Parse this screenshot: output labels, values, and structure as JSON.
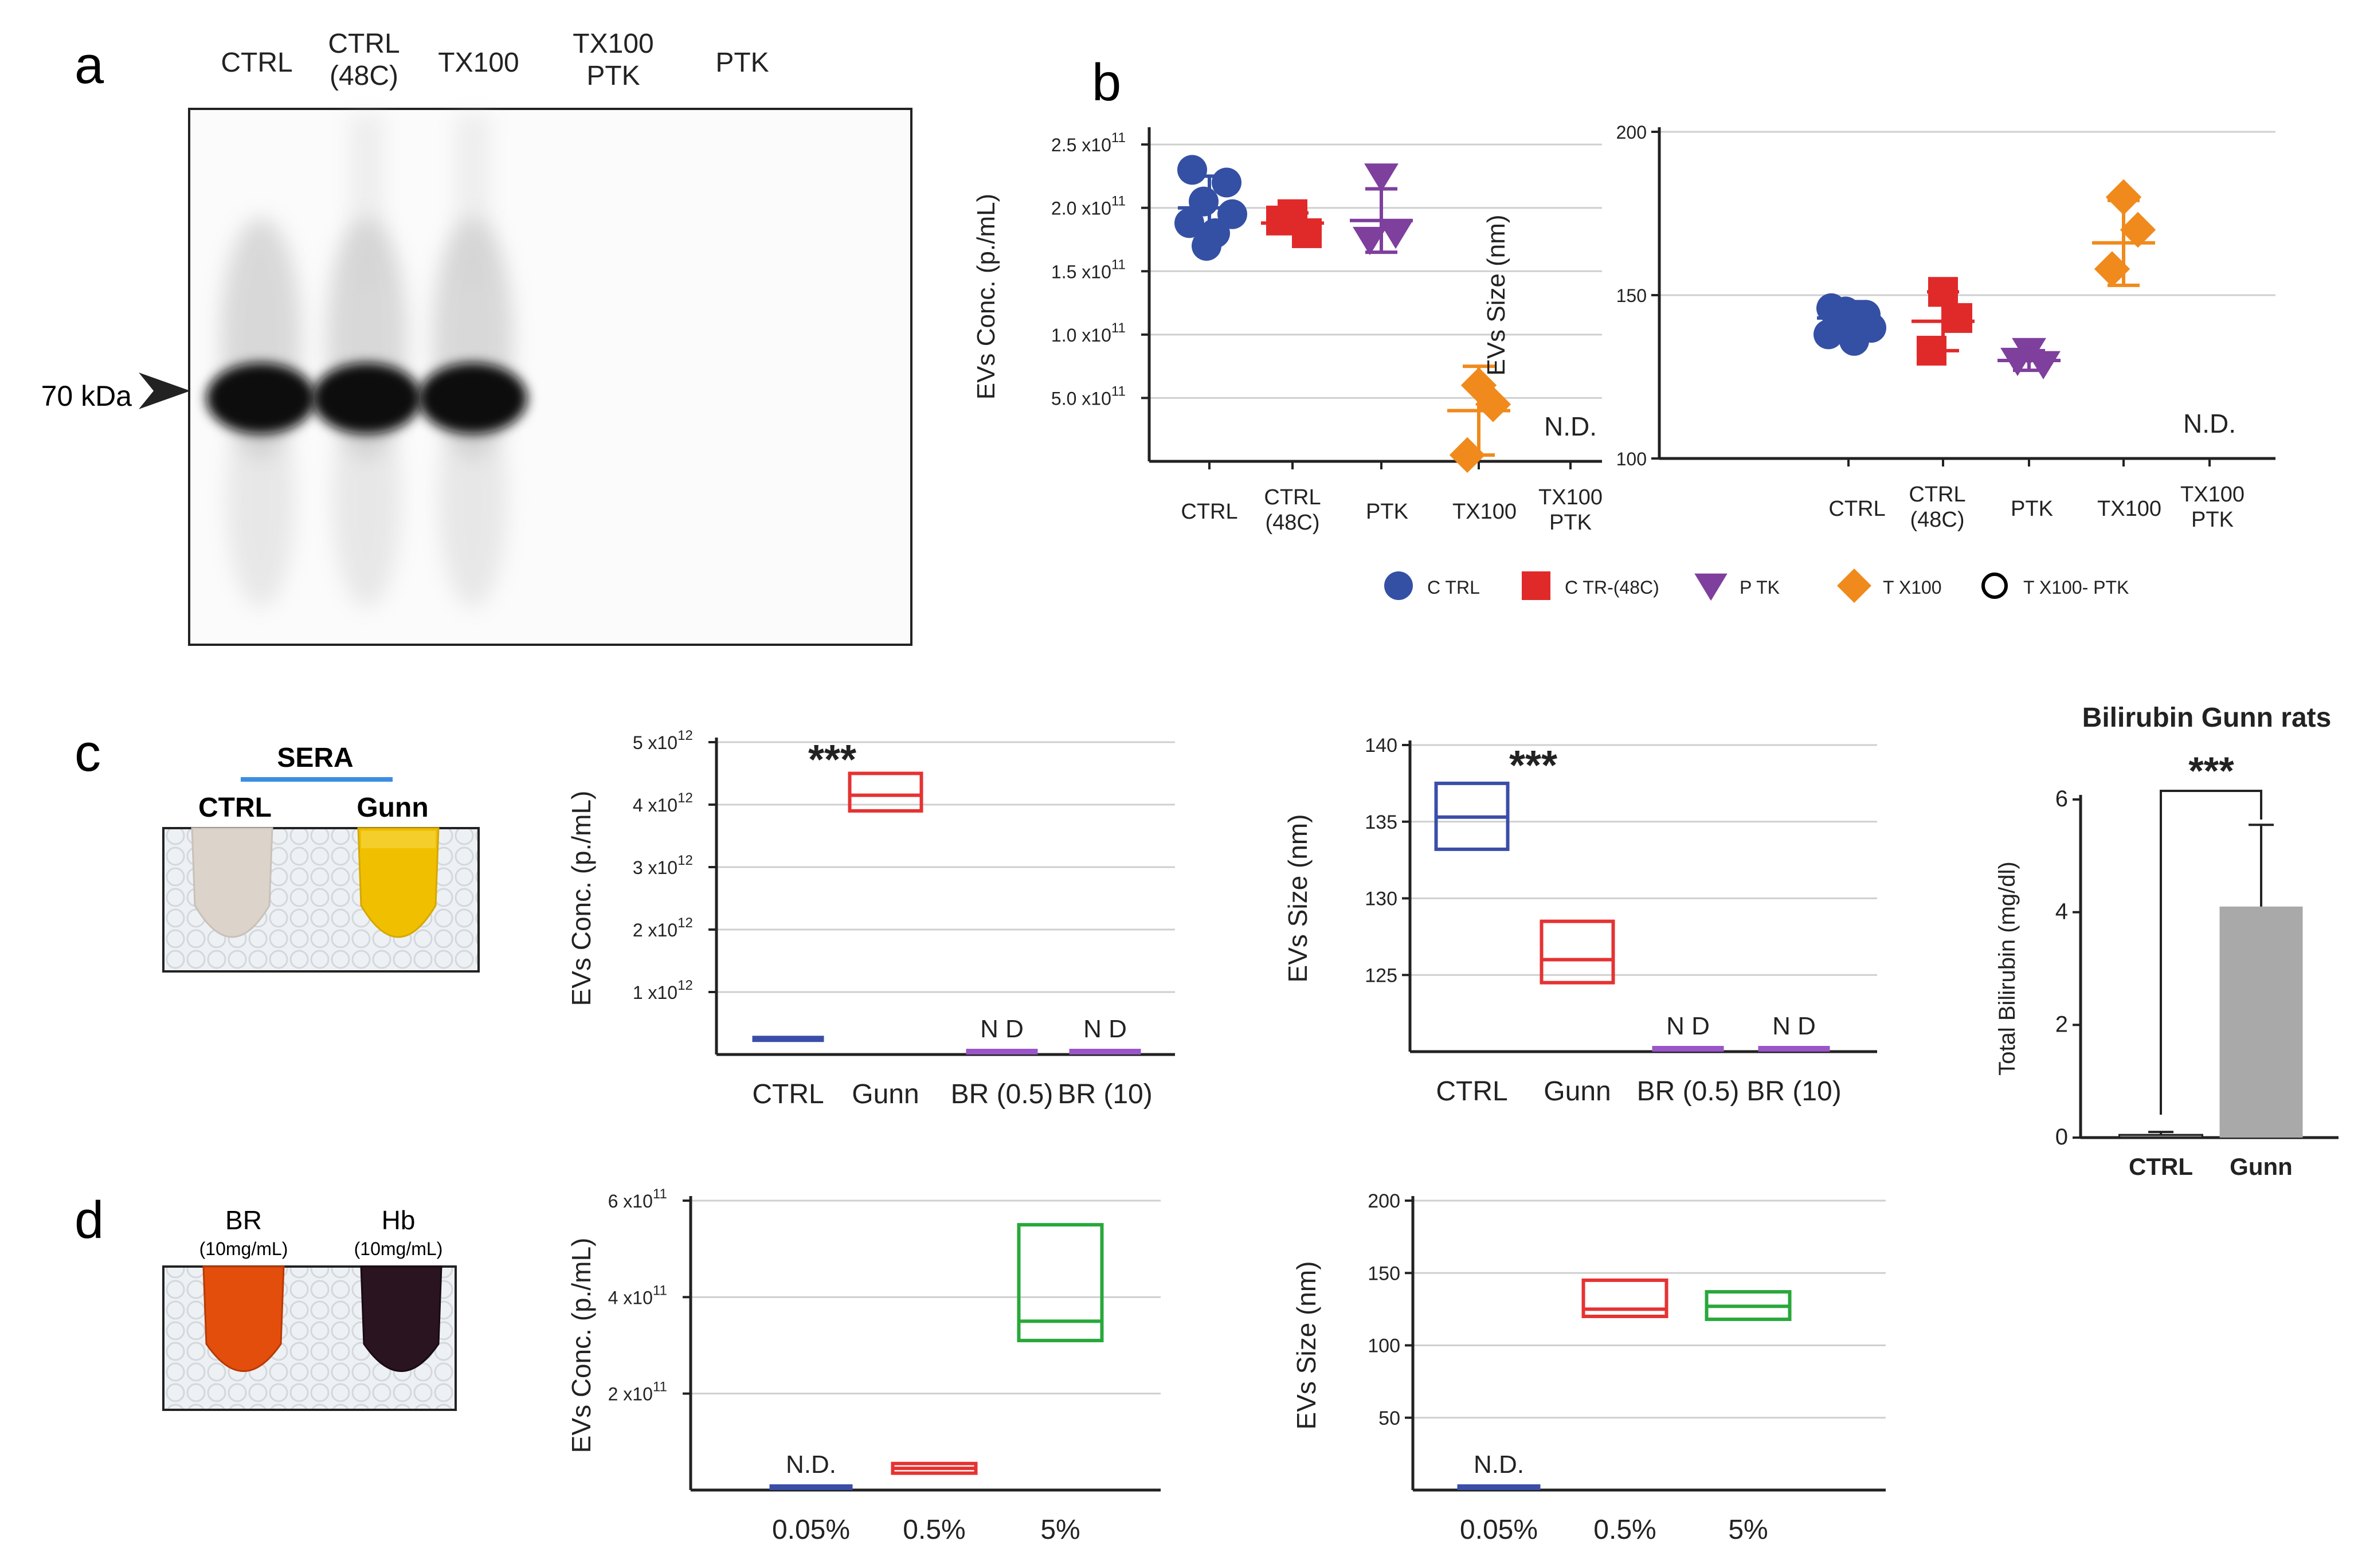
{
  "panel_letters": {
    "a": "a",
    "b": "b",
    "c": "c",
    "d": "d"
  },
  "panel_a": {
    "lanes": [
      "CTRL",
      "CTRL\n(48C)",
      "TX100",
      "TX100\nPTK",
      "PTK"
    ],
    "marker_label": "70 kDa",
    "band_lanes": [
      0,
      1,
      2
    ]
  },
  "panel_b": {
    "categories": [
      "CTRL",
      "CTRL\n(48C)",
      "PTK",
      "TX100",
      "TX100\nPTK"
    ],
    "legend": [
      {
        "label": "C TRL",
        "shape": "circle",
        "color": "#3450a4"
      },
      {
        "label": "C TR-(48C)",
        "shape": "square",
        "color": "#e02a2a"
      },
      {
        "label": "P TK",
        "shape": "triangle-down",
        "color": "#7e3f9d"
      },
      {
        "label": "T X100",
        "shape": "diamond",
        "color": "#f08a1c"
      },
      {
        "label": "T X100- PTK",
        "shape": "circle-open",
        "color": "#000000"
      }
    ]
  },
  "panel_c": {
    "sera_label": "SERA",
    "tube_labels": [
      "CTRL",
      "Gunn"
    ],
    "tube_colors": [
      "#d9cfc6",
      "#f2c200"
    ]
  },
  "panel_d": {
    "tube_labels": [
      "BR",
      "Hb"
    ],
    "tube_sublabels": [
      "(10mg/mL)",
      "(10mg/mL)"
    ],
    "tube_colors": [
      "#e44e0c",
      "#2a1420"
    ]
  },
  "chart_data": [
    {
      "id": "b-conc",
      "type": "scatter",
      "ylabel": "EVs Conc. (p./mL)",
      "yticks": [
        {
          "v": 0.5,
          "label": "5.0 x10",
          "exp": "11"
        },
        {
          "v": 1.0,
          "label": "1.0 x10",
          "exp": "11"
        },
        {
          "v": 1.5,
          "label": "1.5 x10",
          "exp": "11"
        },
        {
          "v": 2.0,
          "label": "2.0 x10",
          "exp": "11"
        },
        {
          "v": 2.5,
          "label": "2.5 x10",
          "exp": "11"
        }
      ],
      "ylim": [
        0,
        2.6
      ],
      "categories": [
        "CTRL",
        "CTRL\n(48C)",
        "PTK",
        "TX100",
        "TX100\nPTK"
      ],
      "groups": [
        {
          "name": "CTRL",
          "shape": "circle",
          "color": "#3450a4",
          "points": [
            2.3,
            2.2,
            2.05,
            1.95,
            1.88,
            1.8,
            1.7
          ],
          "mean": 2.0,
          "sd": 0.25
        },
        {
          "name": "CTR-(48C)",
          "shape": "square",
          "color": "#e02a2a",
          "points": [
            1.95,
            1.8,
            1.9
          ],
          "mean": 1.88,
          "sd": 0.08
        },
        {
          "name": "PTK",
          "shape": "triangle-down",
          "color": "#7e3f9d",
          "points": [
            2.25,
            1.8,
            1.75
          ],
          "mean": 1.9,
          "sd": 0.25
        },
        {
          "name": "TX100",
          "shape": "diamond",
          "color": "#f08a1c",
          "points": [
            0.6,
            0.45,
            0.05
          ],
          "mean": 0.4,
          "sd": 0.35
        }
      ],
      "annotation": "N.D."
    },
    {
      "id": "b-size",
      "type": "scatter",
      "ylabel": "EVs Size   (nm)",
      "yticks": [
        {
          "v": 100,
          "label": "100"
        },
        {
          "v": 150,
          "label": "150"
        },
        {
          "v": 200,
          "label": "200"
        }
      ],
      "ylim": [
        100,
        200
      ],
      "categories": [
        "CTRL",
        "CTRL\n(48C)",
        "PTK",
        "TX100",
        "TX100\nPTK"
      ],
      "groups": [
        {
          "name": "CTRL",
          "shape": "circle",
          "color": "#3450a4",
          "points": [
            146,
            144,
            142,
            140,
            138,
            136,
            145
          ],
          "mean": 143,
          "sd": 5
        },
        {
          "name": "CTR-(48C)",
          "shape": "square",
          "color": "#e02a2a",
          "points": [
            151,
            143,
            133
          ],
          "mean": 142,
          "sd": 9
        },
        {
          "name": "PTK",
          "shape": "triangle-down",
          "color": "#7e3f9d",
          "points": [
            133,
            129,
            130
          ],
          "mean": 130,
          "sd": 3
        },
        {
          "name": "TX100",
          "shape": "diamond",
          "color": "#f08a1c",
          "points": [
            180,
            170,
            158
          ],
          "mean": 166,
          "sd": 13
        }
      ],
      "annotation": "N.D."
    },
    {
      "id": "c-conc",
      "type": "box",
      "ylabel": "EVs Conc. (p./mL)",
      "yticks": [
        {
          "v": 1,
          "label": "1 x10",
          "exp": "12"
        },
        {
          "v": 2,
          "label": "2 x10",
          "exp": "12"
        },
        {
          "v": 3,
          "label": "3 x10",
          "exp": "12"
        },
        {
          "v": 4,
          "label": "4 x10",
          "exp": "12"
        },
        {
          "v": 5,
          "label": "5 x10",
          "exp": "12"
        }
      ],
      "ylim": [
        0,
        5
      ],
      "categories": [
        "CTRL",
        "Gunn",
        "BR (0.5)",
        "BR (10)"
      ],
      "boxes": [
        {
          "cat": 0,
          "low": 0.2,
          "mid": 0.25,
          "high": 0.3,
          "color": "#3a4ea8",
          "filled": true
        },
        {
          "cat": 1,
          "low": 3.9,
          "mid": 4.15,
          "high": 4.5,
          "color": "#e63232",
          "filled": false
        },
        {
          "cat": 2,
          "low": 0,
          "mid": 0,
          "high": 0.02,
          "color": "#9a55c8",
          "filled": true,
          "label": "N D"
        },
        {
          "cat": 3,
          "low": 0,
          "mid": 0,
          "high": 0.02,
          "color": "#9a55c8",
          "filled": true,
          "label": "N D"
        }
      ],
      "significance": "***"
    },
    {
      "id": "c-size",
      "type": "box",
      "ylabel": "EVs Size   (nm)",
      "yticks": [
        {
          "v": 125,
          "label": "125"
        },
        {
          "v": 130,
          "label": "130"
        },
        {
          "v": 135,
          "label": "135"
        },
        {
          "v": 140,
          "label": "140"
        }
      ],
      "ylim": [
        120,
        140
      ],
      "categories": [
        "CTRL",
        "Gunn",
        "BR (0.5)",
        "BR (10)"
      ],
      "boxes": [
        {
          "cat": 0,
          "low": 133.2,
          "mid": 135.3,
          "high": 137.5,
          "color": "#3a4ea8",
          "filled": false
        },
        {
          "cat": 1,
          "low": 124.5,
          "mid": 126.0,
          "high": 128.5,
          "color": "#e63232",
          "filled": false
        },
        {
          "cat": 2,
          "low": 120,
          "mid": 120,
          "high": 120.1,
          "color": "#9a55c8",
          "filled": true,
          "label": "N D"
        },
        {
          "cat": 3,
          "low": 120,
          "mid": 120,
          "high": 120.1,
          "color": "#9a55c8",
          "filled": true,
          "label": "N D"
        }
      ],
      "significance": "***"
    },
    {
      "id": "c-bili",
      "type": "bar",
      "title": "Bilirubin Gunn rats",
      "ylabel": "Total Bilirubin (mg/dl)",
      "yticks": [
        {
          "v": 0,
          "label": "0"
        },
        {
          "v": 2,
          "label": "2"
        },
        {
          "v": 4,
          "label": "4"
        },
        {
          "v": 6,
          "label": "6"
        }
      ],
      "ylim": [
        0,
        6
      ],
      "categories": [
        "CTRL",
        "Gunn"
      ],
      "values": [
        0.05,
        4.1
      ],
      "errors": [
        0.05,
        1.45
      ],
      "colors": [
        "#888888",
        "#a9a9a9"
      ],
      "significance": "***"
    },
    {
      "id": "d-conc",
      "type": "box",
      "ylabel": "EVs Conc. (p./mL)",
      "yticks": [
        {
          "v": 2,
          "label": "2 x10",
          "exp": "11"
        },
        {
          "v": 4,
          "label": "4 x10",
          "exp": "11"
        },
        {
          "v": 6,
          "label": "6 x10",
          "exp": "11"
        }
      ],
      "ylim": [
        0,
        6
      ],
      "categories": [
        "0.05%",
        "0.5%",
        "5%"
      ],
      "boxes": [
        {
          "cat": 0,
          "low": 0,
          "mid": 0,
          "high": 0.03,
          "color": "#3a4ea8",
          "filled": true,
          "label": "N.D."
        },
        {
          "cat": 1,
          "low": 0.35,
          "mid": 0.45,
          "high": 0.55,
          "color": "#e63232",
          "filled": false
        },
        {
          "cat": 2,
          "low": 3.1,
          "mid": 3.5,
          "high": 5.5,
          "color": "#28a83a",
          "filled": false
        }
      ]
    },
    {
      "id": "d-size",
      "type": "box",
      "ylabel": "EVs Size   (nm)",
      "yticks": [
        {
          "v": 50,
          "label": "50"
        },
        {
          "v": 100,
          "label": "100"
        },
        {
          "v": 150,
          "label": "150"
        },
        {
          "v": 200,
          "label": "200"
        }
      ],
      "ylim": [
        0,
        200
      ],
      "categories": [
        "0.05%",
        "0.5%",
        "5%"
      ],
      "boxes": [
        {
          "cat": 0,
          "low": 0,
          "mid": 0,
          "high": 1,
          "color": "#3a4ea8",
          "filled": true,
          "label": "N.D."
        },
        {
          "cat": 1,
          "low": 120,
          "mid": 125,
          "high": 145,
          "color": "#e63232",
          "filled": false
        },
        {
          "cat": 2,
          "low": 118,
          "mid": 127,
          "high": 137,
          "color": "#28a83a",
          "filled": false
        }
      ]
    }
  ]
}
